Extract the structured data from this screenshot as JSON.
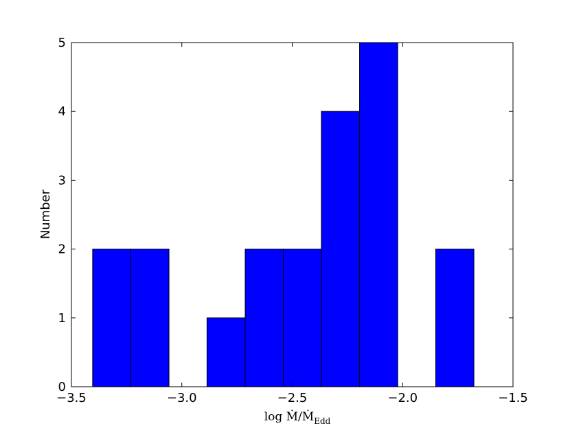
{
  "chart_data": {
    "type": "histogram",
    "x_label": {
      "text": "log Ṁ/Ṁ",
      "subscript": "Edd"
    },
    "y_label": "Number",
    "bins": [
      -3.404,
      -3.231,
      -3.058,
      -2.886,
      -2.713,
      -2.54,
      -2.368,
      -2.195,
      -2.022,
      -1.85,
      -1.677
    ],
    "counts": [
      2,
      2,
      0,
      1,
      2,
      2,
      4,
      5,
      0,
      2
    ],
    "color": "#0000ff",
    "xlim": [
      -3.5,
      -1.5
    ],
    "xticks": [
      {
        "value": -3.5,
        "label": "−3.5"
      },
      {
        "value": -3.0,
        "label": "−3.0"
      },
      {
        "value": -2.5,
        "label": "−2.5"
      },
      {
        "value": -2.0,
        "label": "−2.0"
      },
      {
        "value": -1.5,
        "label": "−1.5"
      }
    ],
    "ylim": [
      0,
      5
    ],
    "yticks": [
      0,
      1,
      2,
      3,
      4,
      5
    ]
  }
}
